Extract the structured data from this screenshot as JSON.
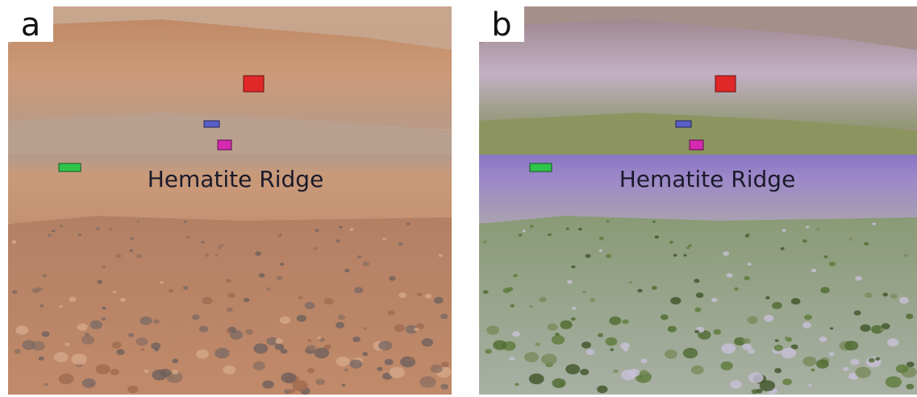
{
  "panels": [
    {
      "label": "a",
      "annotation": "Hematite Ridge"
    },
    {
      "label": "b",
      "annotation": "Hematite Ridge"
    }
  ]
}
